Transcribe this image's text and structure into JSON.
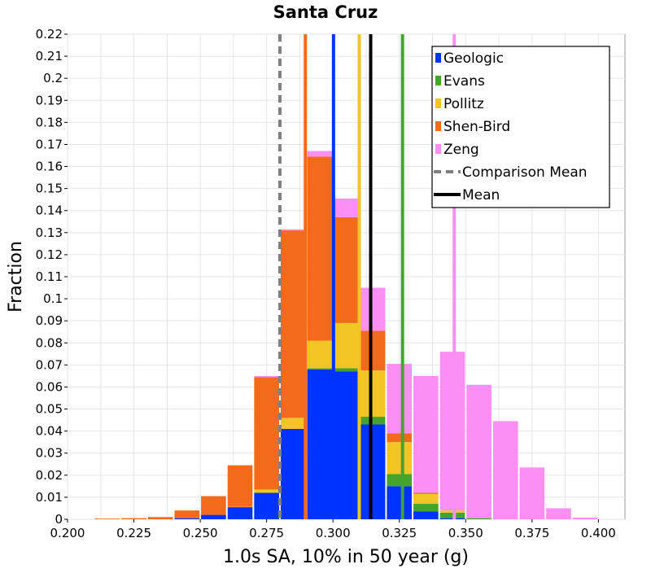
{
  "chart_data": {
    "type": "bar",
    "title": "Santa Cruz",
    "xlabel": "1.0s SA, 10% in 50 year (g)",
    "ylabel": "Fraction",
    "xlim": [
      0.2,
      0.41
    ],
    "ylim": [
      0,
      0.22
    ],
    "bin_width": 0.01,
    "grid": true,
    "legend_placement": "top-right",
    "x_ticks": [
      "0.200",
      "0.225",
      "0.250",
      "0.275",
      "0.300",
      "0.325",
      "0.350",
      "0.375",
      "0.400"
    ],
    "y_ticks": [
      "0",
      "0.01",
      "0.02",
      "0.03",
      "0.04",
      "0.05",
      "0.06",
      "0.07",
      "0.08",
      "0.09",
      "0.1",
      "0.11",
      "0.12",
      "0.13",
      "0.14",
      "0.15",
      "0.16",
      "0.17",
      "0.18",
      "0.19",
      "0.2",
      "0.21",
      "0.22"
    ],
    "bin_centers": [
      0.205,
      0.215,
      0.225,
      0.235,
      0.245,
      0.255,
      0.265,
      0.275,
      0.285,
      0.295,
      0.305,
      0.315,
      0.325,
      0.335,
      0.345,
      0.355,
      0.365,
      0.375,
      0.385,
      0.395
    ],
    "series": [
      {
        "name": "Geologic",
        "color": "#0033ff",
        "values": [
          0,
          0,
          0,
          0,
          0.0005,
          0.002,
          0.0055,
          0.012,
          0.041,
          0.068,
          0.067,
          0.043,
          0.015,
          0.0035,
          0.0005,
          0,
          0,
          0,
          0,
          0
        ]
      },
      {
        "name": "Evans",
        "color": "#44a42c",
        "values": [
          0,
          0,
          0,
          0,
          0,
          0,
          0,
          0,
          0,
          0.0005,
          0.0015,
          0.0035,
          0.0055,
          0.0035,
          0.0025,
          0.0005,
          0,
          0,
          0,
          0
        ]
      },
      {
        "name": "Pollitz",
        "color": "#f2c425",
        "values": [
          0,
          0,
          0,
          0,
          0,
          0,
          0.0002,
          0.0015,
          0.005,
          0.0125,
          0.0205,
          0.021,
          0.0145,
          0.0045,
          0.001,
          0,
          0,
          0,
          0,
          0
        ]
      },
      {
        "name": "Shen-Bird",
        "color": "#f26a1b",
        "values": [
          0,
          0.0003,
          0.0005,
          0.001,
          0.0035,
          0.0085,
          0.0188,
          0.051,
          0.085,
          0.0835,
          0.048,
          0.018,
          0.004,
          0.0005,
          0,
          0,
          0,
          0,
          0,
          0
        ]
      },
      {
        "name": "Zeng",
        "color": "#fb8ff3",
        "values": [
          0,
          0,
          0,
          0,
          0,
          0,
          0,
          0.0005,
          0.0005,
          0.0025,
          0.0085,
          0.0195,
          0.0315,
          0.053,
          0.072,
          0.0605,
          0.0445,
          0.0235,
          0.005,
          0.0008
        ]
      }
    ],
    "vertical_lines": [
      {
        "x": 0.28,
        "color": "#808080",
        "style": "dashed"
      },
      {
        "x": 0.2896,
        "color": "#f26a1b",
        "style": "solid"
      },
      {
        "x": 0.3002,
        "color": "#0033ff",
        "style": "solid"
      },
      {
        "x": 0.3099,
        "color": "#f2c425",
        "style": "solid"
      },
      {
        "x": 0.3142,
        "color": "#000000",
        "style": "solid"
      },
      {
        "x": 0.3262,
        "color": "#44a42c",
        "style": "solid"
      },
      {
        "x": 0.3457,
        "color": "#fb8ff3",
        "style": "solid"
      }
    ],
    "legend": [
      {
        "label": "Geologic",
        "color": "#0033ff",
        "kind": "box"
      },
      {
        "label": "Evans",
        "color": "#44a42c",
        "kind": "box"
      },
      {
        "label": "Pollitz",
        "color": "#f2c425",
        "kind": "box"
      },
      {
        "label": "Shen-Bird",
        "color": "#f26a1b",
        "kind": "box"
      },
      {
        "label": "Zeng",
        "color": "#fb8ff3",
        "kind": "box"
      },
      {
        "label": "Comparison Mean",
        "color": "#808080",
        "kind": "dashed"
      },
      {
        "label": "Mean",
        "color": "#000000",
        "kind": "line"
      }
    ]
  }
}
